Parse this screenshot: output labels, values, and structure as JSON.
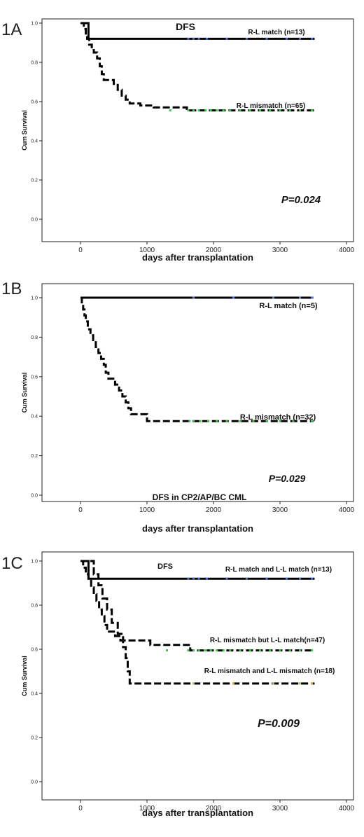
{
  "colors": {
    "line": "#000000",
    "censor_match": "#4a6fd6",
    "censor_mismatch": "#3cc44a",
    "censor_mismatch2": "#c9b24a"
  },
  "chart_data": [
    {
      "type": "line",
      "panel": "1A",
      "title": "DFS",
      "xlabel": "days after transplantation",
      "ylabel": "Cum Survival",
      "xlim": [
        0,
        4000
      ],
      "ylim": [
        0,
        1
      ],
      "x_ticks": [
        "0",
        "1000",
        "2000",
        "3000",
        "4000"
      ],
      "y_ticks": [
        "0.0",
        "0.2",
        "0.4",
        "0.6",
        "0.8",
        "1.0"
      ],
      "grid": false,
      "annotations": [
        "P=0.024"
      ],
      "series": [
        {
          "name": "R-L match (n=13)",
          "style": "solid",
          "steps": [
            [
              0,
              1.0
            ],
            [
              120,
              0.92
            ],
            [
              3520,
              0.92
            ]
          ],
          "censored_x": [
            1620,
            1700,
            1780,
            1900,
            2200,
            2500,
            2800,
            3100,
            3300,
            3480
          ]
        },
        {
          "name": "R-L mismatch (n=65)",
          "style": "dashed",
          "steps": [
            [
              0,
              1.0
            ],
            [
              50,
              0.97
            ],
            [
              80,
              0.94
            ],
            [
              100,
              0.92
            ],
            [
              130,
              0.89
            ],
            [
              170,
              0.87
            ],
            [
              200,
              0.85
            ],
            [
              250,
              0.82
            ],
            [
              290,
              0.78
            ],
            [
              320,
              0.74
            ],
            [
              350,
              0.71
            ],
            [
              500,
              0.69
            ],
            [
              560,
              0.66
            ],
            [
              620,
              0.63
            ],
            [
              680,
              0.61
            ],
            [
              740,
              0.59
            ],
            [
              900,
              0.58
            ],
            [
              1100,
              0.57
            ],
            [
              1600,
              0.555
            ],
            [
              3520,
              0.555
            ]
          ],
          "censored_x": [
            1350,
            1620,
            1700,
            1780,
            1880,
            1960,
            2050,
            2150,
            2250,
            2400,
            2550,
            2700,
            2850,
            3000,
            3150,
            3300,
            3480
          ]
        }
      ]
    },
    {
      "type": "line",
      "panel": "1B",
      "title": "DFS in CP2/AP/BC CML",
      "xlabel": "days after transplantation",
      "ylabel": "Cum Survival",
      "xlim": [
        0,
        4000
      ],
      "ylim": [
        0,
        1
      ],
      "x_ticks": [
        "0",
        "1000",
        "2000",
        "3000",
        "4000"
      ],
      "y_ticks": [
        "0.0",
        "0.2",
        "0.4",
        "0.6",
        "0.8",
        "1.0"
      ],
      "grid": false,
      "annotations": [
        "P=0.029"
      ],
      "series": [
        {
          "name": "R-L match (n=5)",
          "style": "solid",
          "steps": [
            [
              0,
              1.0
            ],
            [
              3500,
              1.0
            ]
          ],
          "censored_x": [
            1700,
            2300,
            2900,
            3300,
            3480
          ]
        },
        {
          "name": "R-L mismatch (n=32)",
          "style": "dashed",
          "steps": [
            [
              0,
              1.0
            ],
            [
              20,
              0.97
            ],
            [
              40,
              0.94
            ],
            [
              60,
              0.91
            ],
            [
              80,
              0.88
            ],
            [
              110,
              0.84
            ],
            [
              150,
              0.81
            ],
            [
              190,
              0.78
            ],
            [
              230,
              0.75
            ],
            [
              270,
              0.72
            ],
            [
              310,
              0.69
            ],
            [
              350,
              0.66
            ],
            [
              380,
              0.62
            ],
            [
              420,
              0.59
            ],
            [
              520,
              0.56
            ],
            [
              580,
              0.53
            ],
            [
              630,
              0.5
            ],
            [
              680,
              0.47
            ],
            [
              720,
              0.44
            ],
            [
              760,
              0.41
            ],
            [
              1000,
              0.375
            ],
            [
              3500,
              0.375
            ]
          ],
          "censored_x": [
            1640,
            1700,
            1800,
            1920,
            2050,
            2200,
            2400,
            2600,
            2800,
            3000,
            3200,
            3480
          ]
        }
      ]
    },
    {
      "type": "line",
      "panel": "1C",
      "title": "DFS",
      "xlabel": "days after transplantation",
      "ylabel": "Cum Survival",
      "xlim": [
        0,
        4000
      ],
      "ylim": [
        0,
        1
      ],
      "x_ticks": [
        "0",
        "1000",
        "2000",
        "3000",
        "4000"
      ],
      "y_ticks": [
        "0.0",
        "0.2",
        "0.4",
        "0.6",
        "0.8",
        "1.0"
      ],
      "grid": false,
      "annotations": [
        "P=0.009"
      ],
      "series": [
        {
          "name": "R-L match and L-L match (n=13)",
          "style": "solid",
          "steps": [
            [
              0,
              1.0
            ],
            [
              120,
              0.92
            ],
            [
              3520,
              0.92
            ]
          ],
          "censored_x": [
            1620,
            1700,
            1780,
            1900,
            2200,
            2500,
            2800,
            3100,
            3300,
            3480
          ]
        },
        {
          "name": "R-L mismatch but L-L match(n=47)",
          "style": "dashed",
          "steps": [
            [
              0,
              1.0
            ],
            [
              40,
              0.97
            ],
            [
              80,
              0.94
            ],
            [
              120,
              0.91
            ],
            [
              160,
              0.88
            ],
            [
              200,
              0.85
            ],
            [
              240,
              0.82
            ],
            [
              280,
              0.78
            ],
            [
              320,
              0.75
            ],
            [
              360,
              0.71
            ],
            [
              400,
              0.68
            ],
            [
              520,
              0.66
            ],
            [
              600,
              0.64
            ],
            [
              1050,
              0.62
            ],
            [
              1650,
              0.595
            ],
            [
              3520,
              0.595
            ]
          ],
          "censored_x": [
            1300,
            1620,
            1700,
            1780,
            1880,
            1960,
            2050,
            2150,
            2250,
            2400,
            2550,
            2700,
            2850,
            3000,
            3150,
            3300,
            3480
          ]
        },
        {
          "name": "R-L mismatch and L-L mismatch (n=18)",
          "style": "dashed",
          "steps": [
            [
              0,
              1.0
            ],
            [
              200,
              0.94
            ],
            [
              270,
              0.89
            ],
            [
              330,
              0.83
            ],
            [
              400,
              0.78
            ],
            [
              470,
              0.72
            ],
            [
              560,
              0.67
            ],
            [
              640,
              0.61
            ],
            [
              680,
              0.56
            ],
            [
              710,
              0.5
            ],
            [
              740,
              0.445
            ],
            [
              3520,
              0.445
            ]
          ],
          "censored_x": [
            1700,
            2300,
            2900,
            3300,
            3480
          ]
        }
      ]
    }
  ]
}
